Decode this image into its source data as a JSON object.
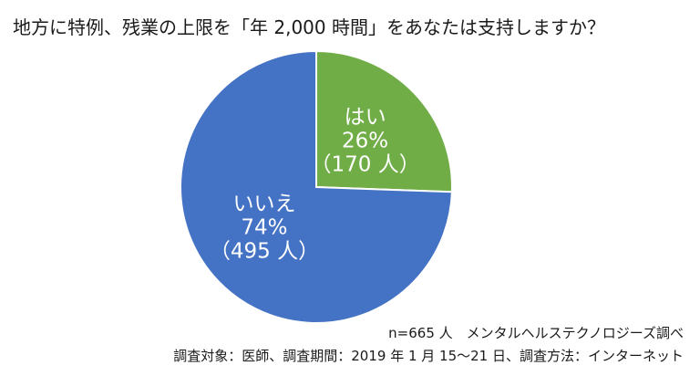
{
  "chart_data": {
    "type": "pie",
    "title": "地方に特例、残業の上限を「年 2,000 時間」をあなたは支持しますか？",
    "slices": [
      {
        "label": "はい",
        "percent_text": "26%",
        "count_text": "（170 人）",
        "value": 170,
        "color": "#70ad47"
      },
      {
        "label": "いいえ",
        "percent_text": "74%",
        "count_text": "（495 人）",
        "value": 495,
        "color": "#4472c4"
      }
    ],
    "start_angle_deg": 0,
    "direction": "clockwise",
    "legend": "none"
  },
  "footer": {
    "line1": "n=665 人　メンタルヘルステクノロジーズ調べ",
    "line2": "調査対象：医師、調査期間：2019 年 1 月 15～21 日、調査方法：インターネット"
  }
}
